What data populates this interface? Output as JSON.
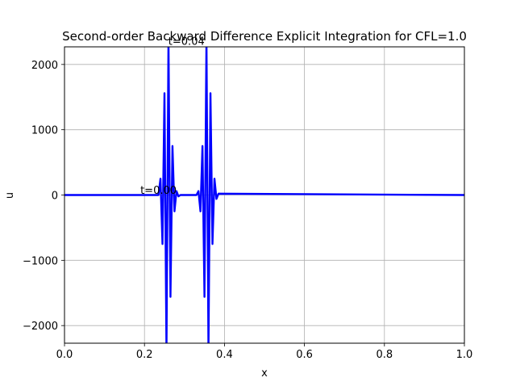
{
  "chart_data": {
    "type": "line",
    "title": "Second-order Backward Difference Explicit Integration for  CFL=1.0",
    "xlabel": "x",
    "ylabel": "u",
    "xlim": [
      0,
      1
    ],
    "ylim": [
      -2270,
      2270
    ],
    "grid": true,
    "x_ticks": [
      0.0,
      0.2,
      0.4,
      0.6,
      0.8,
      1.0
    ],
    "x_tick_labels": [
      "0.0",
      "0.2",
      "0.4",
      "0.6",
      "0.8",
      "1.0"
    ],
    "y_ticks": [
      -2000,
      -1000,
      0,
      1000,
      2000
    ],
    "y_tick_labels": [
      "−2000",
      "−1000",
      "0",
      "1000",
      "2000"
    ],
    "series": [
      {
        "color": "#0000ff",
        "x": [
          0.0,
          0.235,
          0.24,
          0.245,
          0.25,
          0.255,
          0.26,
          0.265,
          0.27,
          0.275,
          0.28,
          0.285,
          0.29,
          0.33,
          0.335,
          0.34,
          0.345,
          0.35,
          0.355,
          0.36,
          0.365,
          0.37,
          0.375,
          0.38,
          0.385,
          1.0
        ],
        "y": [
          0,
          0,
          250,
          -750,
          1560,
          -2400,
          2400,
          -1560,
          750,
          -250,
          60,
          -20,
          0,
          0,
          60,
          -250,
          750,
          -1560,
          2400,
          -2400,
          1560,
          -750,
          250,
          -60,
          20,
          0
        ]
      }
    ],
    "annotations": [
      {
        "text": "t=0.04",
        "x": 0.305,
        "y": 2300
      },
      {
        "text": "t=0.00",
        "x": 0.235,
        "y": 20
      }
    ]
  }
}
